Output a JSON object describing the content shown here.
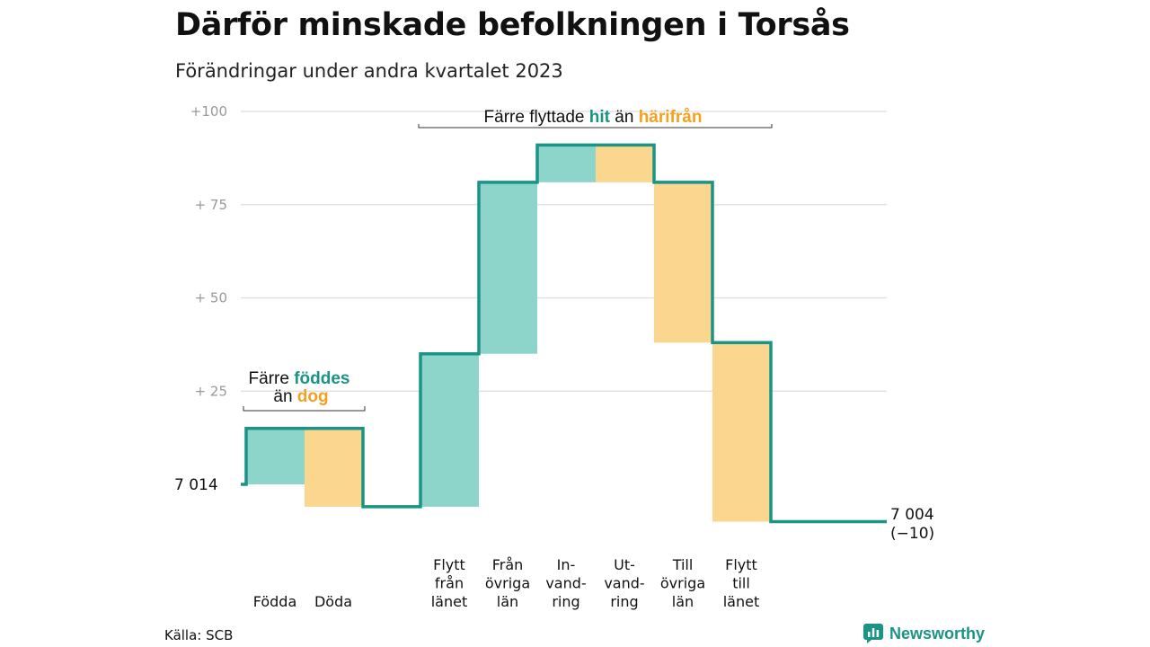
{
  "title": "Därför minskade befolkningen i Torsås",
  "subtitle": "Förändringar under andra kvartalet 2023",
  "source": "Källa: SCB",
  "brand": "Newsworthy",
  "colors": {
    "increase": "#8dd5ca",
    "decrease": "#fad68e",
    "line": "#1a9484",
    "accent_green": "#1a9484",
    "accent_orange": "#f5a021",
    "grid": "#dddddd"
  },
  "annotations": {
    "births": {
      "line1_prefix": "Färre ",
      "line1_highlight": "föddes",
      "line2_prefix": "än ",
      "line2_highlight": "dog"
    },
    "migration": {
      "prefix": "Färre flyttade ",
      "highlight1": "hit",
      "middle": " än ",
      "highlight2": "härifrån"
    }
  },
  "chart_data": {
    "type": "waterfall",
    "start_label": "7 014",
    "end_label": "7 004",
    "change_label": "(−10)",
    "start_value": 7014,
    "end_value": 7004,
    "y_relative_range": [
      -10,
      100
    ],
    "y_ticks": [
      {
        "value": 100,
        "label": "+100"
      },
      {
        "value": 75,
        "label": "+  75"
      },
      {
        "value": 50,
        "label": "+  50"
      },
      {
        "value": 25,
        "label": "+  25"
      }
    ],
    "steps": [
      {
        "label": [
          "",
          "Födda"
        ],
        "change": 15,
        "kind": "increase"
      },
      {
        "label": [
          "",
          "Döda"
        ],
        "change": -21,
        "kind": "decrease"
      },
      {
        "label": [
          "Flytt",
          "från",
          "länet"
        ],
        "change": 41,
        "kind": "increase"
      },
      {
        "label": [
          "Från",
          "övriga",
          "län"
        ],
        "change": 46,
        "kind": "increase"
      },
      {
        "label": [
          "In-",
          "vand-",
          "ring"
        ],
        "change": 10,
        "kind": "increase"
      },
      {
        "label": [
          "Ut-",
          "vand-",
          "ring"
        ],
        "change": -10,
        "kind": "decrease"
      },
      {
        "label": [
          "Till",
          "övriga",
          "län"
        ],
        "change": -43,
        "kind": "decrease"
      },
      {
        "label": [
          "Flytt",
          "till",
          "länet"
        ],
        "change": -48,
        "kind": "decrease"
      }
    ]
  }
}
